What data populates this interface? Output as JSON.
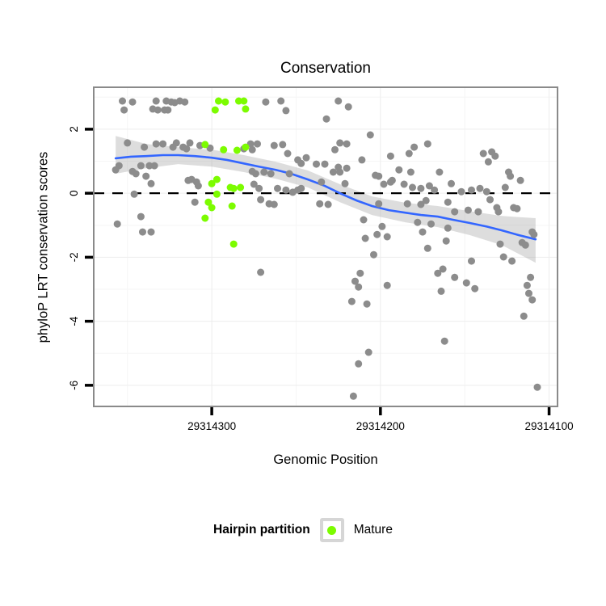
{
  "chart_data": {
    "type": "scatter",
    "title": "Conservation",
    "xlabel": "Genomic Position",
    "ylabel": "phyloP LRT conservation scores",
    "x_axis": {
      "min": 29314095,
      "max": 29314370,
      "reversed": true,
      "ticks": [
        29314300,
        29314200,
        29314100
      ],
      "tick_labels": [
        "29314300",
        "29314200",
        "29314100"
      ],
      "minor_ticks": [
        29314350,
        29314250,
        29314150
      ]
    },
    "y_axis": {
      "min": -6.66,
      "max": 3.31,
      "ticks": [
        2,
        0,
        -2,
        -4,
        -6
      ],
      "tick_labels": [
        "2",
        "0",
        "-2",
        "-4",
        "-6"
      ],
      "minor_ticks": [
        3,
        1,
        -1,
        -3,
        -5
      ]
    },
    "hline": {
      "y": 0,
      "style": "dashed",
      "color": "#000000"
    },
    "colors": {
      "gray_points": "#8C8C8C",
      "mature_points": "#7CFC00",
      "smooth_line": "#3366FF",
      "ribbon": "#9E9E9E",
      "panel_border": "#8A8A8A",
      "grid_major": "#EDEDED",
      "grid_minor": "#F6F6F6"
    },
    "series": [
      {
        "name": "background",
        "color": "#8C8C8C",
        "points": [
          [
            29314353,
            2.88
          ],
          [
            29314347,
            2.85
          ],
          [
            29314352,
            2.6
          ],
          [
            29314333,
            2.88
          ],
          [
            29314327,
            2.88
          ],
          [
            29314324,
            2.85
          ],
          [
            29314322,
            2.83
          ],
          [
            29314319,
            2.88
          ],
          [
            29314316,
            2.85
          ],
          [
            29314335,
            2.63
          ],
          [
            29314332,
            2.6
          ],
          [
            29314328,
            2.6
          ],
          [
            29314326,
            2.6
          ],
          [
            29314268,
            2.85
          ],
          [
            29314259,
            2.88
          ],
          [
            29314256,
            2.58
          ],
          [
            29314225,
            2.88
          ],
          [
            29314219,
            2.7
          ],
          [
            29314232,
            2.32
          ],
          [
            29314206,
            1.82
          ],
          [
            29314350,
            1.57
          ],
          [
            29314340,
            1.44
          ],
          [
            29314333,
            1.54
          ],
          [
            29314329,
            1.54
          ],
          [
            29314323,
            1.44
          ],
          [
            29314321,
            1.57
          ],
          [
            29314317,
            1.44
          ],
          [
            29314315,
            1.39
          ],
          [
            29314313,
            1.57
          ],
          [
            29314307,
            1.49
          ],
          [
            29314301,
            1.41
          ],
          [
            29314281,
            1.39
          ],
          [
            29314277,
            1.54
          ],
          [
            29314273,
            1.54
          ],
          [
            29314263,
            1.49
          ],
          [
            29314258,
            1.52
          ],
          [
            29314255,
            1.24
          ],
          [
            29314276,
            1.36
          ],
          [
            29314224,
            1.57
          ],
          [
            29314220,
            1.54
          ],
          [
            29314227,
            1.36
          ],
          [
            29314194,
            1.16
          ],
          [
            29314183,
            1.24
          ],
          [
            29314180,
            1.44
          ],
          [
            29314172,
            1.54
          ],
          [
            29314139,
            1.24
          ],
          [
            29314136,
            0.98
          ],
          [
            29314134,
            1.29
          ],
          [
            29314132,
            1.16
          ],
          [
            29314355,
            0.86
          ],
          [
            29314357,
            0.73
          ],
          [
            29314347,
            0.68
          ],
          [
            29314345,
            0.61
          ],
          [
            29314342,
            0.86
          ],
          [
            29314337,
            0.86
          ],
          [
            29314334,
            0.86
          ],
          [
            29314339,
            0.53
          ],
          [
            29314249,
            1.04
          ],
          [
            29314247,
            0.93
          ],
          [
            29314244,
            1.11
          ],
          [
            29314238,
            0.91
          ],
          [
            29314233,
            0.91
          ],
          [
            29314225,
            0.81
          ],
          [
            29314228,
            0.66
          ],
          [
            29314224,
            0.66
          ],
          [
            29314220,
            0.78
          ],
          [
            29314276,
            0.68
          ],
          [
            29314274,
            0.61
          ],
          [
            29314269,
            0.66
          ],
          [
            29314265,
            0.61
          ],
          [
            29314254,
            0.61
          ],
          [
            29314211,
            1.04
          ],
          [
            29314203,
            0.56
          ],
          [
            29314201,
            0.53
          ],
          [
            29314189,
            0.73
          ],
          [
            29314182,
            0.66
          ],
          [
            29314165,
            0.66
          ],
          [
            29314124,
            0.66
          ],
          [
            29314123,
            0.53
          ],
          [
            29314117,
            0.4
          ],
          [
            29314126,
            0.18
          ],
          [
            29314336,
            0.3
          ],
          [
            29314314,
            0.4
          ],
          [
            29314312,
            0.43
          ],
          [
            29314309,
            0.35
          ],
          [
            29314308,
            0.23
          ],
          [
            29314346,
            -0.03
          ],
          [
            29314275,
            0.28
          ],
          [
            29314272,
            0.15
          ],
          [
            29314261,
            0.15
          ],
          [
            29314256,
            0.1
          ],
          [
            29314252,
            0.03
          ],
          [
            29314249,
            0.1
          ],
          [
            29314247,
            0.15
          ],
          [
            29314235,
            0.35
          ],
          [
            29314221,
            0.3
          ],
          [
            29314198,
            0.28
          ],
          [
            29314194,
            0.35
          ],
          [
            29314193,
            0.4
          ],
          [
            29314186,
            0.28
          ],
          [
            29314181,
            0.18
          ],
          [
            29314176,
            0.15
          ],
          [
            29314171,
            0.23
          ],
          [
            29314168,
            0.1
          ],
          [
            29314158,
            0.3
          ],
          [
            29314152,
            0.05
          ],
          [
            29314146,
            0.1
          ],
          [
            29314141,
            0.15
          ],
          [
            29314137,
            0.05
          ],
          [
            29314135,
            -0.2
          ],
          [
            29314310,
            -0.28
          ],
          [
            29314271,
            -0.2
          ],
          [
            29314266,
            -0.33
          ],
          [
            29314263,
            -0.35
          ],
          [
            29314236,
            -0.33
          ],
          [
            29314231,
            -0.35
          ],
          [
            29314201,
            -0.33
          ],
          [
            29314184,
            -0.33
          ],
          [
            29314176,
            -0.35
          ],
          [
            29314173,
            -0.23
          ],
          [
            29314160,
            -0.28
          ],
          [
            29314156,
            -0.58
          ],
          [
            29314148,
            -0.53
          ],
          [
            29314142,
            -0.58
          ],
          [
            29314131,
            -0.45
          ],
          [
            29314130,
            -0.58
          ],
          [
            29314121,
            -0.45
          ],
          [
            29314119,
            -0.48
          ],
          [
            29314342,
            -0.73
          ],
          [
            29314356,
            -0.96
          ],
          [
            29314341,
            -1.21
          ],
          [
            29314336,
            -1.21
          ],
          [
            29314210,
            -0.83
          ],
          [
            29314199,
            -1.04
          ],
          [
            29314209,
            -1.41
          ],
          [
            29314202,
            -1.29
          ],
          [
            29314196,
            -1.36
          ],
          [
            29314178,
            -0.91
          ],
          [
            29314175,
            -1.21
          ],
          [
            29314170,
            -0.96
          ],
          [
            29314160,
            -1.09
          ],
          [
            29314161,
            -1.49
          ],
          [
            29314129,
            -1.59
          ],
          [
            29314110,
            -1.21
          ],
          [
            29314109,
            -1.29
          ],
          [
            29314116,
            -1.54
          ],
          [
            29314172,
            -1.72
          ],
          [
            29314114,
            -1.62
          ],
          [
            29314204,
            -1.92
          ],
          [
            29314271,
            -2.47
          ],
          [
            29314212,
            -2.5
          ],
          [
            29314215,
            -2.75
          ],
          [
            29314213,
            -2.93
          ],
          [
            29314196,
            -2.88
          ],
          [
            29314146,
            -2.12
          ],
          [
            29314127,
            -1.99
          ],
          [
            29314122,
            -2.12
          ],
          [
            29314166,
            -2.5
          ],
          [
            29314163,
            -2.37
          ],
          [
            29314156,
            -2.63
          ],
          [
            29314149,
            -2.8
          ],
          [
            29314144,
            -2.98
          ],
          [
            29314164,
            -3.06
          ],
          [
            29314111,
            -2.63
          ],
          [
            29314113,
            -2.88
          ],
          [
            29314112,
            -3.13
          ],
          [
            29314110,
            -3.33
          ],
          [
            29314217,
            -3.38
          ],
          [
            29314208,
            -3.46
          ],
          [
            29314115,
            -3.84
          ],
          [
            29314162,
            -4.62
          ],
          [
            29314207,
            -4.97
          ],
          [
            29314213,
            -5.33
          ],
          [
            29314216,
            -6.34
          ],
          [
            29314107,
            -6.06
          ]
        ]
      },
      {
        "name": "Mature",
        "color": "#7CFC00",
        "points": [
          [
            29314296,
            2.88
          ],
          [
            29314292,
            2.85
          ],
          [
            29314284,
            2.88
          ],
          [
            29314281,
            2.88
          ],
          [
            29314298,
            2.6
          ],
          [
            29314280,
            2.63
          ],
          [
            29314304,
            1.52
          ],
          [
            29314293,
            1.36
          ],
          [
            29314285,
            1.34
          ],
          [
            29314280,
            1.44
          ],
          [
            29314297,
            0.43
          ],
          [
            29314300,
            0.3
          ],
          [
            29314289,
            0.18
          ],
          [
            29314287,
            0.15
          ],
          [
            29314283,
            0.18
          ],
          [
            29314297,
            -0.03
          ],
          [
            29314302,
            -0.28
          ],
          [
            29314300,
            -0.45
          ],
          [
            29314288,
            -0.4
          ],
          [
            29314304,
            -0.78
          ],
          [
            29314287,
            -1.59
          ]
        ]
      }
    ],
    "smooth": {
      "color": "#3366FF",
      "line": [
        [
          29314357,
          1.09
        ],
        [
          29314348,
          1.14
        ],
        [
          29314339,
          1.16
        ],
        [
          29314329,
          1.19
        ],
        [
          29314320,
          1.19
        ],
        [
          29314310,
          1.16
        ],
        [
          29314300,
          1.11
        ],
        [
          29314291,
          1.04
        ],
        [
          29314281,
          0.93
        ],
        [
          29314272,
          0.83
        ],
        [
          29314262,
          0.73
        ],
        [
          29314253,
          0.61
        ],
        [
          29314243,
          0.43
        ],
        [
          29314233,
          0.23
        ],
        [
          29314224,
          0.0
        ],
        [
          29314214,
          -0.23
        ],
        [
          29314205,
          -0.4
        ],
        [
          29314195,
          -0.53
        ],
        [
          29314185,
          -0.61
        ],
        [
          29314176,
          -0.68
        ],
        [
          29314166,
          -0.73
        ],
        [
          29314157,
          -0.83
        ],
        [
          29314147,
          -0.93
        ],
        [
          29314137,
          -1.04
        ],
        [
          29314128,
          -1.16
        ],
        [
          29314118,
          -1.31
        ],
        [
          29314108,
          -1.44
        ]
      ],
      "ribbon": [
        [
          29314357,
          0.61,
          1.79
        ],
        [
          29314339,
          0.78,
          1.54
        ],
        [
          29314320,
          0.91,
          1.44
        ],
        [
          29314300,
          0.83,
          1.36
        ],
        [
          29314281,
          0.66,
          1.19
        ],
        [
          29314262,
          0.45,
          0.98
        ],
        [
          29314243,
          0.18,
          0.71
        ],
        [
          29314224,
          -0.28,
          0.28
        ],
        [
          29314205,
          -0.68,
          -0.1
        ],
        [
          29314185,
          -0.91,
          -0.3
        ],
        [
          29314166,
          -1.06,
          -0.4
        ],
        [
          29314147,
          -1.31,
          -0.56
        ],
        [
          29314128,
          -1.62,
          -0.71
        ],
        [
          29314108,
          -2.17,
          -0.78
        ]
      ]
    },
    "legend": {
      "title": "Hairpin partition",
      "entries": [
        {
          "label": "Mature",
          "color": "#7CFC00"
        }
      ]
    }
  }
}
